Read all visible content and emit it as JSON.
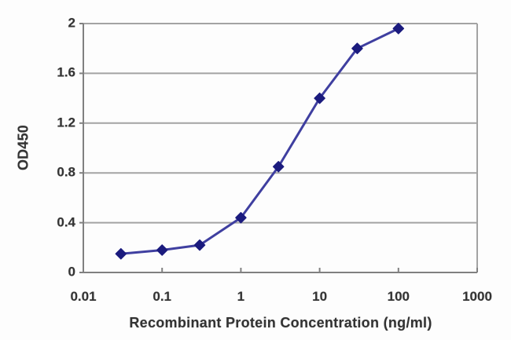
{
  "chart_data": {
    "type": "line",
    "title": "",
    "xlabel": "Recombinant Protein Concentration (ng/ml)",
    "ylabel": "OD450",
    "x_scale": "log",
    "y_scale": "linear",
    "xlim": [
      0.01,
      1000
    ],
    "ylim": [
      0,
      2
    ],
    "x_tick_labels": [
      "0.01",
      "0.1",
      "1",
      "10",
      "100",
      "1000"
    ],
    "y_tick_labels": [
      "0",
      "0.4",
      "0.8",
      "1.2",
      "1.6",
      "2"
    ],
    "grid": "horizontal-only",
    "legend": "none",
    "series": [
      {
        "name": "OD450",
        "marker": "diamond",
        "x": [
          0.03,
          0.1,
          0.3,
          1,
          3,
          10,
          30,
          100
        ],
        "y": [
          0.15,
          0.18,
          0.22,
          0.44,
          0.85,
          1.4,
          1.8,
          1.96
        ]
      }
    ],
    "colors": {
      "line": "#3f3fa0",
      "marker": "#1b1b7e",
      "gridline": "#a3a3a3",
      "border": "#a3a3a3",
      "axis": "#808080",
      "text": "#333333",
      "background": "#fdfdfd"
    }
  }
}
